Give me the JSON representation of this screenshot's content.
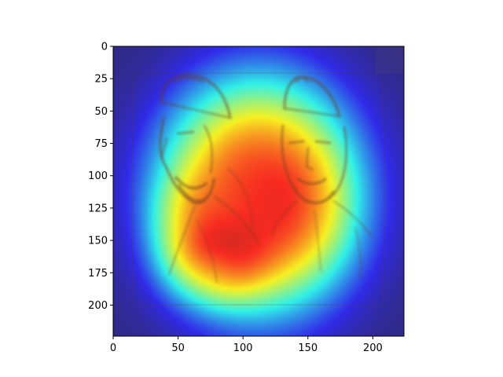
{
  "chart_data": {
    "type": "heatmap",
    "title": "",
    "xlabel": "",
    "ylabel": "",
    "xlim": [
      0,
      224
    ],
    "ylim": [
      224,
      0
    ],
    "xticks": [
      0,
      50,
      100,
      150,
      200
    ],
    "yticks": [
      0,
      25,
      50,
      75,
      100,
      125,
      150,
      175,
      200
    ],
    "grid": false,
    "legend": "none",
    "colormap": "jet",
    "overlay": "heatmap overlaid on a sepia sketch of two bearded men wearing caps",
    "hotspots": [
      {
        "x": 112,
        "y": 115,
        "sx": 62,
        "sy": 72,
        "intensity": 0.85
      },
      {
        "x": 78,
        "y": 170,
        "sx": 32,
        "sy": 26,
        "intensity": 0.2
      },
      {
        "x": 52,
        "y": 140,
        "sx": 22,
        "sy": 30,
        "intensity": 0.12
      },
      {
        "x": 150,
        "y": 130,
        "sx": 30,
        "sy": 40,
        "intensity": 0.06
      }
    ],
    "frame_colors": {
      "axes": "#000000",
      "background": "#ffffff"
    }
  }
}
